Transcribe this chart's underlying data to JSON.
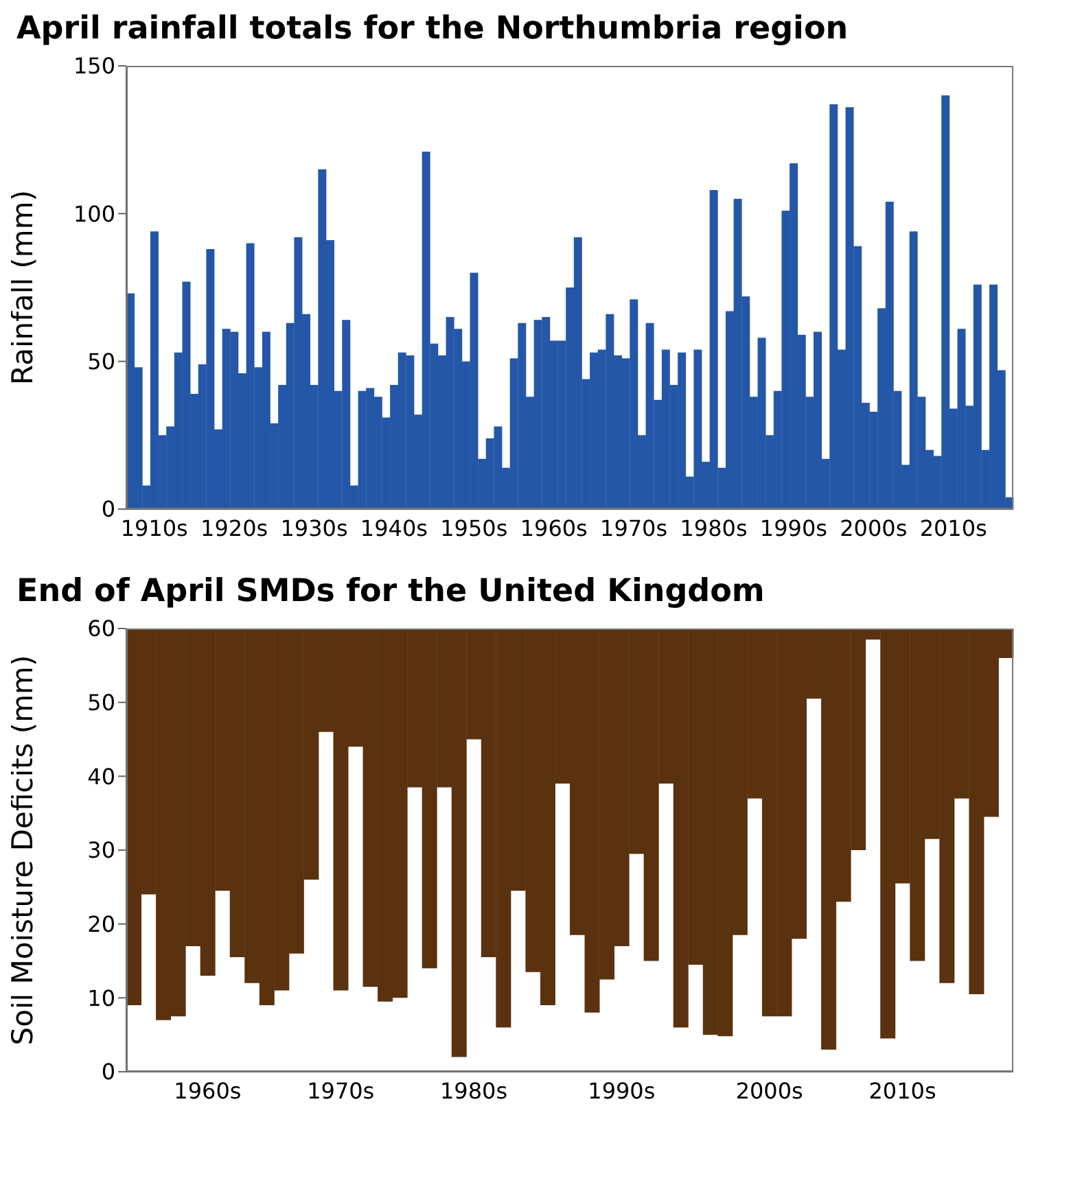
{
  "chart_data": [
    {
      "type": "bar",
      "title": "April rainfall totals for the Northumbria region",
      "ylabel": "Rainfall (mm)",
      "categories": [
        null,
        null,
        null,
        "1910s",
        null,
        null,
        null,
        null,
        null,
        null,
        null,
        null,
        null,
        "1920s",
        null,
        null,
        null,
        null,
        null,
        null,
        null,
        null,
        null,
        "1930s",
        null,
        null,
        null,
        null,
        null,
        null,
        null,
        null,
        null,
        "1940s",
        null,
        null,
        null,
        null,
        null,
        null,
        null,
        null,
        null,
        "1950s",
        null,
        null,
        null,
        null,
        null,
        null,
        null,
        null,
        null,
        "1960s",
        null,
        null,
        null,
        null,
        null,
        null,
        null,
        null,
        null,
        "1970s",
        null,
        null,
        null,
        null,
        null,
        null,
        null,
        null,
        null,
        "1980s",
        null,
        null,
        null,
        null,
        null,
        null,
        null,
        null,
        null,
        "1990s",
        null,
        null,
        null,
        null,
        null,
        null,
        null,
        null,
        null,
        "2000s",
        null,
        null,
        null,
        null,
        null,
        null,
        null,
        null,
        null,
        "2010s",
        null,
        null,
        null,
        null,
        null,
        null,
        null
      ],
      "values": [
        73,
        48,
        8,
        94,
        25,
        28,
        53,
        77,
        39,
        49,
        88,
        27,
        61,
        60,
        46,
        90,
        48,
        60,
        29,
        42,
        63,
        92,
        66,
        42,
        115,
        91,
        40,
        64,
        8,
        40,
        41,
        38,
        31,
        42,
        53,
        52,
        32,
        121,
        56,
        52,
        65,
        61,
        50,
        80,
        17,
        24,
        28,
        14,
        51,
        63,
        38,
        64,
        65,
        57,
        57,
        75,
        92,
        44,
        53,
        54,
        66,
        52,
        51,
        71,
        25,
        63,
        37,
        54,
        42,
        53,
        11,
        54,
        16,
        108,
        14,
        67,
        105,
        72,
        38,
        58,
        25,
        40,
        101,
        117,
        59,
        38,
        60,
        17,
        137,
        54,
        136,
        89,
        36,
        33,
        68,
        104,
        40,
        15,
        94,
        38,
        20,
        18,
        140,
        34,
        61,
        35,
        76,
        20,
        76,
        47,
        4
      ],
      "color": "#2457a7",
      "ylim": [
        0,
        150
      ],
      "yticks": [
        0,
        50,
        100,
        150
      ],
      "grid": false,
      "legend": false
    },
    {
      "type": "bar",
      "title": "End of April SMDs for the United Kingdom",
      "ylabel": "Soil Moisture Deficits (mm)",
      "categories": [
        null,
        null,
        null,
        null,
        null,
        "1960s",
        null,
        null,
        null,
        null,
        null,
        null,
        null,
        null,
        "1970s",
        null,
        null,
        null,
        null,
        null,
        null,
        null,
        null,
        "1980s",
        null,
        null,
        null,
        null,
        null,
        null,
        null,
        null,
        null,
        "1990s",
        null,
        null,
        null,
        null,
        null,
        null,
        null,
        null,
        null,
        "2000s",
        null,
        null,
        null,
        null,
        null,
        null,
        null,
        null,
        "2010s",
        null,
        null,
        null,
        null,
        null,
        null,
        null
      ],
      "base": [
        9,
        24,
        7,
        7.5,
        17,
        13,
        24.5,
        15.5,
        12,
        9,
        11,
        16,
        26,
        46,
        11,
        44,
        11.5,
        9.5,
        10,
        38.5,
        14,
        38.5,
        2,
        45,
        15.5,
        6,
        24.5,
        13.5,
        9,
        39,
        18.5,
        8,
        12.5,
        17,
        29.5,
        15,
        39,
        6,
        14.5,
        5,
        4.8,
        18.5,
        37,
        7.5,
        7.5,
        18,
        50.5,
        3,
        23,
        30,
        58.5,
        4.5,
        25.5,
        15,
        31.5,
        12,
        37,
        10.5,
        34.5,
        56
      ],
      "values": [
        51,
        36,
        53,
        52.5,
        43,
        47,
        35.5,
        44.5,
        48,
        51,
        49,
        44,
        34,
        14,
        49,
        16,
        48.5,
        50.5,
        50,
        21.5,
        46,
        21.5,
        58,
        15,
        44.5,
        54,
        35.5,
        46.5,
        51,
        21,
        41.5,
        52,
        47.5,
        43,
        30.5,
        45,
        21,
        54,
        45.5,
        55,
        55.2,
        41.5,
        23,
        52.5,
        52.5,
        42,
        9.5,
        57,
        37,
        30,
        1.5,
        55.5,
        34.5,
        45,
        28.5,
        48,
        23,
        49.5,
        25.5,
        4
      ],
      "color": "#5a3210",
      "ylim": [
        0,
        60
      ],
      "yticks": [
        0,
        10,
        20,
        30,
        40,
        50,
        60
      ],
      "grid": false,
      "legend": false
    }
  ]
}
